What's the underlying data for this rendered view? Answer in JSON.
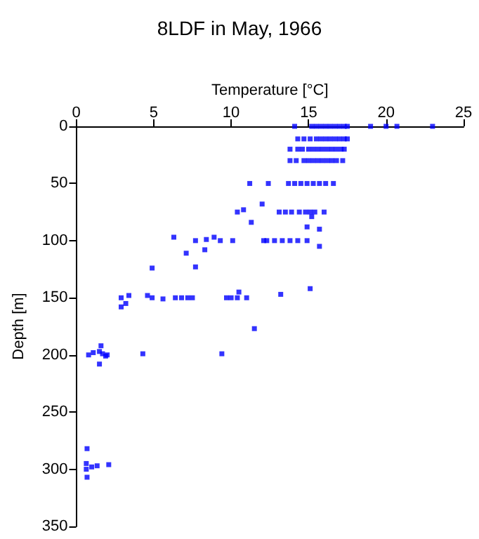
{
  "chart_data": {
    "type": "scatter",
    "title": "8LDF in May, 1966",
    "xlabel": "Temperature [°C]",
    "ylabel": "Depth [m]",
    "xlim": [
      0,
      25
    ],
    "xticks": [
      0,
      5,
      10,
      15,
      20,
      25
    ],
    "ylim": [
      350,
      0
    ],
    "yticks": [
      0,
      50,
      100,
      150,
      200,
      250,
      300,
      350
    ],
    "grid": false,
    "marker": "square",
    "series": [
      {
        "color": "#0000ff",
        "x": [
          14.1,
          15.2,
          15.5,
          15.8,
          16.1,
          16.4,
          16.7,
          17.0,
          17.3,
          17.5,
          19.0,
          20.0,
          20.7,
          23.0,
          14.3,
          14.7,
          15.1,
          15.5,
          15.8,
          16.1,
          16.4,
          16.7,
          17.0,
          17.3,
          17.5,
          13.8,
          14.3,
          14.6,
          15.0,
          15.3,
          15.6,
          15.9,
          16.2,
          16.5,
          16.8,
          17.1,
          17.3,
          13.8,
          14.2,
          14.7,
          15.0,
          15.3,
          15.6,
          15.9,
          16.2,
          16.5,
          16.8,
          17.2,
          11.2,
          12.4,
          13.7,
          14.1,
          14.5,
          14.9,
          15.3,
          15.7,
          16.1,
          16.6,
          12.0,
          10.8,
          10.4,
          13.1,
          13.5,
          13.9,
          14.4,
          14.8,
          15.1,
          15.4,
          16.0,
          15.2,
          11.3,
          14.9,
          15.7,
          15.7,
          6.3,
          7.1,
          7.7,
          8.3,
          8.4,
          8.9,
          9.3,
          10.1,
          12.1,
          12.3,
          12.8,
          13.3,
          13.8,
          14.3,
          14.9,
          4.9,
          7.7,
          2.9,
          3.2,
          3.4,
          2.9,
          4.6,
          4.9,
          5.6,
          6.4,
          6.8,
          7.2,
          7.5,
          9.7,
          10.0,
          10.4,
          11.0,
          10.5,
          13.2,
          15.1,
          11.5,
          0.8,
          1.1,
          1.5,
          1.6,
          1.5,
          1.7,
          1.9,
          2.0,
          4.3,
          9.4,
          0.7,
          0.65,
          0.65,
          1.0,
          1.35,
          2.1,
          0.7
        ],
        "values": [
          0,
          0,
          0,
          0,
          0,
          0,
          0,
          0,
          0,
          0,
          0,
          0,
          0,
          0,
          11,
          11,
          11,
          11,
          11,
          11,
          11,
          11,
          11,
          11,
          11,
          20,
          20,
          20,
          20,
          20,
          20,
          20,
          20,
          20,
          20,
          20,
          20,
          30,
          30,
          30,
          30,
          30,
          30,
          30,
          30,
          30,
          30,
          30,
          50,
          50,
          50,
          50,
          50,
          50,
          50,
          50,
          50,
          50,
          68,
          73,
          75,
          75,
          75,
          75,
          75,
          75,
          75,
          75,
          75,
          79,
          84,
          88,
          90,
          105,
          97,
          111,
          100,
          108,
          99,
          97,
          100,
          100,
          100,
          100,
          100,
          100,
          100,
          100,
          100,
          124,
          123,
          150,
          155,
          148,
          158,
          148,
          150,
          151,
          150,
          150,
          150,
          150,
          150,
          150,
          150,
          150,
          145,
          147,
          142,
          177,
          200,
          198,
          208,
          192,
          197,
          199,
          201,
          200,
          199,
          199,
          282,
          295,
          300,
          298,
          297,
          296,
          307
        ]
      }
    ]
  }
}
